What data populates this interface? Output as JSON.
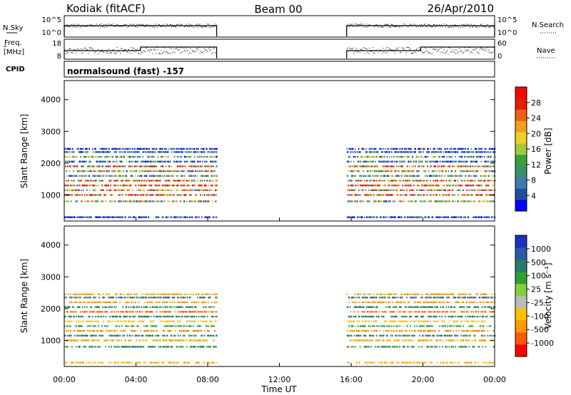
{
  "header": {
    "station": "Kodiak (fitACF)",
    "beam": "Beam 00",
    "date": "26/Apr/2010"
  },
  "param_panel": {
    "nsky_label": "N.Sky",
    "nsearch_label": "N.Search",
    "freq_label_line1": "Freq.",
    "freq_label_line2": "[MHz]",
    "nave_label": "Nave",
    "cpid_label": "CPID",
    "noise_ticks": [
      "10^5",
      "10^0"
    ],
    "freq_ticks": [
      "18",
      "8"
    ],
    "nave_ticks": [
      "60",
      "0"
    ],
    "cpid_text": "normalsound (fast) -157"
  },
  "colors": {
    "power_scale": [
      "#0000ff",
      "#1e4fa0",
      "#3d7ab0",
      "#3a8f6e",
      "#3aa03a",
      "#a6c93a",
      "#f0d020",
      "#f0a020",
      "#f06010",
      "#e02000",
      "#ff0000"
    ],
    "velocity_scale": [
      "#ff0000",
      "#ff5a00",
      "#ff9900",
      "#ffc200",
      "#bbbbbb",
      "#80d040",
      "#2ea02e",
      "#2c7a6a",
      "#2a5aa8",
      "#1f30c0"
    ]
  },
  "chart_data": [
    {
      "type": "heatmap",
      "title": "",
      "panel": "power",
      "xlabel": "",
      "ylabel": "Slant Range [km]",
      "xlim": [
        "00:00",
        "24:00"
      ],
      "ylim": [
        180,
        4600
      ],
      "yticks": [
        "1000",
        "2000",
        "3000",
        "4000"
      ],
      "colorbar": {
        "label": "Power [dB]",
        "range": [
          0,
          32
        ],
        "ticks": [
          "4",
          "8",
          "12",
          "16",
          "20",
          "24",
          "28"
        ]
      },
      "data_intervals_ut": [
        [
          "00:00",
          "08:30"
        ],
        [
          "15:45",
          "24:00"
        ]
      ],
      "range_bands_km": [
        {
          "range": 300,
          "value": 4
        },
        {
          "range": 800,
          "value": 14
        },
        {
          "range": 1000,
          "value": 22
        },
        {
          "range": 1150,
          "value": 18
        },
        {
          "range": 1300,
          "value": 26
        },
        {
          "range": 1450,
          "value": 20
        },
        {
          "range": 1600,
          "value": 10
        },
        {
          "range": 1750,
          "value": 16
        },
        {
          "range": 1900,
          "value": 22
        },
        {
          "range": 2050,
          "value": 8
        },
        {
          "range": 2200,
          "value": 12
        },
        {
          "range": 2350,
          "value": 6
        },
        {
          "range": 2450,
          "value": 4
        }
      ]
    },
    {
      "type": "heatmap",
      "title": "",
      "panel": "velocity",
      "xlabel": "Time UT",
      "ylabel": "Slant Range [km]",
      "xlim": [
        "00:00",
        "24:00"
      ],
      "xticks": [
        "00:00",
        "04:00",
        "08:00",
        "12:00",
        "16:00",
        "20:00",
        "00:00"
      ],
      "ylim": [
        180,
        4600
      ],
      "yticks": [
        "1000",
        "2000",
        "3000",
        "4000"
      ],
      "colorbar": {
        "label": "Velocity [m s⁻¹]",
        "range": [
          -1500,
          1500
        ],
        "ticks": [
          "1000",
          "500",
          "100",
          "25",
          "-25",
          "-100",
          "-500",
          "-1000"
        ]
      },
      "data_intervals_ut": [
        [
          "00:00",
          "08:30"
        ],
        [
          "15:45",
          "24:00"
        ]
      ],
      "range_bands_km": [
        {
          "range": 300,
          "value": -100
        },
        {
          "range": 800,
          "value": 100
        },
        {
          "range": 1000,
          "value": -200
        },
        {
          "range": 1150,
          "value": 200
        },
        {
          "range": 1300,
          "value": -400
        },
        {
          "range": 1450,
          "value": 50
        },
        {
          "range": 1600,
          "value": -50
        },
        {
          "range": 1750,
          "value": 300
        },
        {
          "range": 1900,
          "value": -600
        },
        {
          "range": 2050,
          "value": 150
        },
        {
          "range": 2200,
          "value": -300
        },
        {
          "range": 2350,
          "value": 400
        },
        {
          "range": 2450,
          "value": -200
        }
      ]
    }
  ]
}
